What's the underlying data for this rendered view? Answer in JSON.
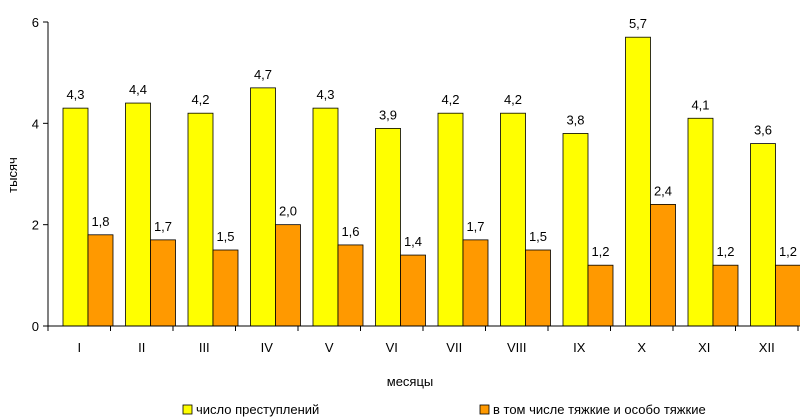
{
  "chart_data": {
    "type": "bar",
    "title": "",
    "xlabel": "месяцы",
    "ylabel": "тысяч",
    "ylim": [
      0,
      6
    ],
    "yticks": [
      "0",
      "2",
      "4",
      "6"
    ],
    "categories": [
      "I",
      "II",
      "III",
      "IV",
      "V",
      "VI",
      "VII",
      "VIII",
      "IX",
      "X",
      "XI",
      "XII"
    ],
    "series": [
      {
        "name": "число преступлений",
        "color": "#ffff00",
        "values": [
          4.3,
          4.4,
          4.2,
          4.7,
          4.3,
          3.9,
          4.2,
          4.2,
          3.8,
          5.7,
          4.1,
          3.6
        ],
        "labels": [
          "4,3",
          "4,4",
          "4,2",
          "4,7",
          "4,3",
          "3,9",
          "4,2",
          "4,2",
          "3,8",
          "5,7",
          "4,1",
          "3,6"
        ]
      },
      {
        "name": "в том числе тяжкие и особо тяжкие",
        "color": "#ff9900",
        "values": [
          1.8,
          1.7,
          1.5,
          2.0,
          1.6,
          1.4,
          1.7,
          1.5,
          1.2,
          2.4,
          1.2,
          1.2
        ],
        "labels": [
          "1,8",
          "1,7",
          "1,5",
          "2,0",
          "1,6",
          "1,4",
          "1,7",
          "1,5",
          "1,2",
          "2,4",
          "1,2",
          "1,2"
        ]
      }
    ],
    "grid": false,
    "legend": "bottom"
  }
}
